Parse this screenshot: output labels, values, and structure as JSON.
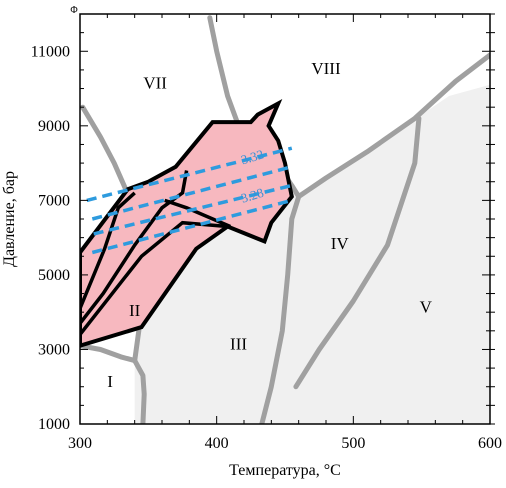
{
  "chart_data": {
    "type": "phase-diagram",
    "xlabel": "Температура, °С",
    "ylabel": "Давление, бар",
    "xlim": [
      300,
      600
    ],
    "ylim": [
      1000,
      12000
    ],
    "x_ticks": [
      300,
      400,
      500,
      600
    ],
    "x_tick_labels": [
      "300",
      "400",
      "500",
      "600"
    ],
    "y_ticks": [
      1000,
      3000,
      5000,
      7000,
      9000,
      11000
    ],
    "y_tick_labels": [
      "1000",
      "3000",
      "5000",
      "7000",
      "9000",
      "11000"
    ],
    "grid": false,
    "corner_mark": "Φ",
    "colors": {
      "shaded_area": "#f0f0f0",
      "boundary": "#a0a0a0",
      "pink_region": "#f7b8bf",
      "outline": "#000000",
      "isolines": "#2e9bde",
      "iso_text": "#3a8fd6"
    },
    "shaded_area": [
      [
        340,
        1000
      ],
      [
        340,
        2500
      ],
      [
        347,
        5000
      ],
      [
        360,
        6200
      ],
      [
        390,
        6600
      ],
      [
        425,
        7000
      ],
      [
        460,
        7200
      ],
      [
        490,
        7800
      ],
      [
        530,
        8800
      ],
      [
        570,
        9800
      ],
      [
        600,
        10100
      ],
      [
        600,
        1000
      ]
    ],
    "boundaries": [
      {
        "name": "boundary-VII-left",
        "points": [
          [
            302,
            9500
          ],
          [
            315,
            8700
          ],
          [
            325,
            8000
          ],
          [
            337,
            7000
          ],
          [
            345,
            6200
          ],
          [
            360,
            5650
          ],
          [
            380,
            5700
          ]
        ]
      },
      {
        "name": "boundary-VII-VIII",
        "points": [
          [
            395,
            11900
          ],
          [
            400,
            11000
          ],
          [
            408,
            9800
          ],
          [
            415,
            9100
          ],
          [
            425,
            8600
          ],
          [
            440,
            8200
          ],
          [
            455,
            7400
          ],
          [
            460,
            7100
          ]
        ]
      },
      {
        "name": "boundary-VIII-IV",
        "points": [
          [
            460,
            7100
          ],
          [
            480,
            7600
          ],
          [
            510,
            8300
          ],
          [
            545,
            9200
          ],
          [
            575,
            10200
          ],
          [
            600,
            10900
          ]
        ]
      },
      {
        "name": "boundary-III-IV",
        "points": [
          [
            433,
            1000
          ],
          [
            440,
            2000
          ],
          [
            448,
            3500
          ],
          [
            452,
            5000
          ],
          [
            455,
            6500
          ],
          [
            460,
            7100
          ]
        ]
      },
      {
        "name": "boundary-IV-V",
        "points": [
          [
            458,
            2000
          ],
          [
            475,
            3000
          ],
          [
            500,
            4300
          ],
          [
            525,
            5800
          ],
          [
            545,
            8000
          ],
          [
            548,
            9200
          ]
        ]
      },
      {
        "name": "boundary-II-III",
        "points": [
          [
            340,
            2700
          ],
          [
            343,
            3500
          ],
          [
            345,
            4500
          ],
          [
            347,
            5100
          ],
          [
            352,
            5600
          ],
          [
            360,
            5650
          ]
        ]
      },
      {
        "name": "boundary-I-II",
        "points": [
          [
            300,
            3100
          ],
          [
            315,
            3000
          ],
          [
            330,
            2800
          ],
          [
            340,
            2700
          ]
        ]
      },
      {
        "name": "boundary-I-right",
        "points": [
          [
            340,
            2700
          ],
          [
            346,
            2300
          ],
          [
            347,
            1800
          ],
          [
            346,
            1000
          ]
        ]
      }
    ],
    "pink_region": [
      [
        300,
        3100
      ],
      [
        300,
        5600
      ],
      [
        335,
        7300
      ],
      [
        350,
        7500
      ],
      [
        370,
        7900
      ],
      [
        397,
        9100
      ],
      [
        425,
        9100
      ],
      [
        430,
        9300
      ],
      [
        445,
        9600
      ],
      [
        438,
        9000
      ],
      [
        445,
        8600
      ],
      [
        450,
        8000
      ],
      [
        455,
        7100
      ],
      [
        440,
        6400
      ],
      [
        435,
        5900
      ],
      [
        408,
        6300
      ],
      [
        385,
        5700
      ],
      [
        345,
        3600
      ]
    ],
    "inner_lines": [
      {
        "name": "inner-line-1",
        "points": [
          [
            300,
            4100
          ],
          [
            318,
            5700
          ],
          [
            328,
            6800
          ],
          [
            340,
            7200
          ]
        ]
      },
      {
        "name": "inner-line-2",
        "points": [
          [
            300,
            3700
          ],
          [
            317,
            4500
          ],
          [
            340,
            5800
          ],
          [
            360,
            6800
          ],
          [
            375,
            7200
          ],
          [
            378,
            7800
          ]
        ]
      },
      {
        "name": "inner-line-3",
        "points": [
          [
            300,
            3400
          ],
          [
            345,
            5500
          ],
          [
            375,
            6400
          ],
          [
            408,
            6300
          ]
        ]
      },
      {
        "name": "inner-line-4",
        "points": [
          [
            362,
            7000
          ],
          [
            378,
            6800
          ],
          [
            410,
            6300
          ]
        ]
      }
    ],
    "isolines": [
      {
        "label": "",
        "points": [
          [
            305,
            7000
          ],
          [
            455,
            8400
          ]
        ]
      },
      {
        "label": "3.32",
        "points": [
          [
            309,
            6500
          ],
          [
            455,
            7900
          ]
        ]
      },
      {
        "label": "3.28",
        "points": [
          [
            310,
            6100
          ],
          [
            455,
            7400
          ]
        ]
      },
      {
        "label": "",
        "points": [
          [
            309,
            5600
          ],
          [
            455,
            7000
          ]
        ]
      }
    ],
    "iso_labels": [
      {
        "text": "3.32",
        "x": 427,
        "y": 8050
      },
      {
        "text": "3.28",
        "x": 427,
        "y": 7020
      }
    ],
    "regions": [
      {
        "label": "VII",
        "x": 355,
        "y": 10100
      },
      {
        "label": "VIII",
        "x": 480,
        "y": 10500
      },
      {
        "label": "IV",
        "x": 490,
        "y": 5800
      },
      {
        "label": "V",
        "x": 553,
        "y": 4100
      },
      {
        "label": "III",
        "x": 416,
        "y": 3100
      },
      {
        "label": "II",
        "x": 340,
        "y": 4000
      },
      {
        "label": "I",
        "x": 322,
        "y": 2100
      }
    ]
  }
}
